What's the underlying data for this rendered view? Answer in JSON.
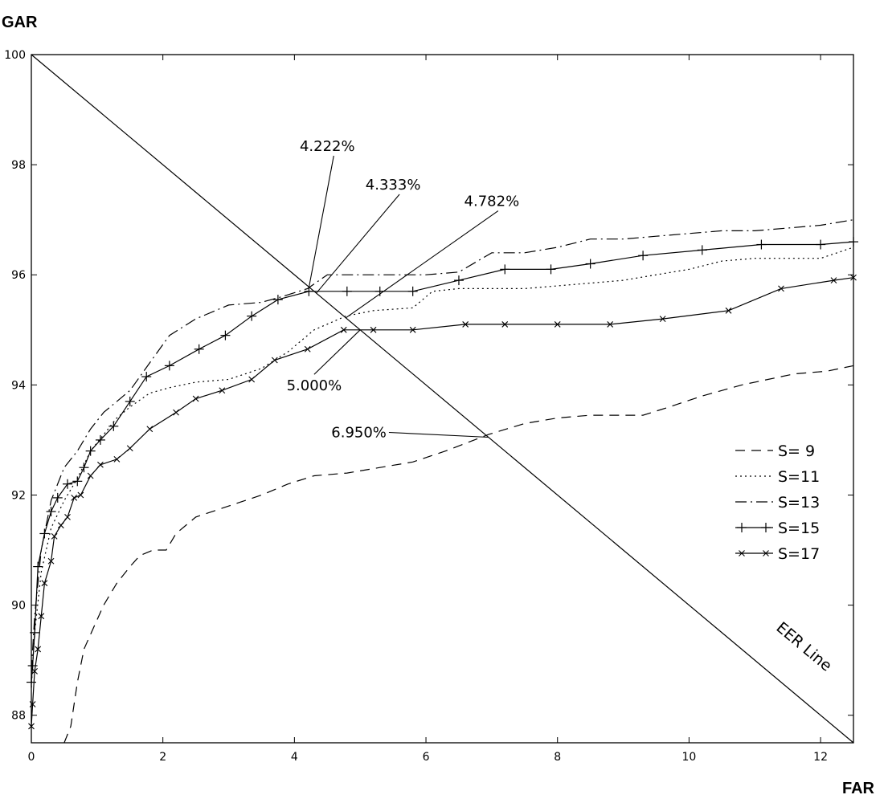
{
  "chart_data": {
    "type": "line",
    "xlabel": "FAR",
    "ylabel": "GAR",
    "xlim": [
      0,
      12.5
    ],
    "ylim": [
      87.5,
      100
    ],
    "x_ticks": [
      0,
      2,
      4,
      6,
      8,
      10,
      12
    ],
    "y_ticks": [
      88,
      90,
      92,
      94,
      96,
      98,
      100
    ],
    "grid": false,
    "legend_position": "right",
    "series": [
      {
        "name": "S= 9",
        "dash": "12,8",
        "marker": "none",
        "points": [
          [
            0.5,
            87.5
          ],
          [
            0.6,
            87.8
          ],
          [
            0.7,
            88.6
          ],
          [
            0.8,
            89.2
          ],
          [
            0.95,
            89.6
          ],
          [
            1.1,
            90.0
          ],
          [
            1.3,
            90.4
          ],
          [
            1.5,
            90.7
          ],
          [
            1.65,
            90.9
          ],
          [
            1.85,
            91.0
          ],
          [
            2.05,
            91.0
          ],
          [
            2.2,
            91.3
          ],
          [
            2.5,
            91.6
          ],
          [
            3.0,
            91.8
          ],
          [
            3.5,
            92.0
          ],
          [
            3.9,
            92.2
          ],
          [
            4.3,
            92.35
          ],
          [
            4.8,
            92.4
          ],
          [
            5.3,
            92.5
          ],
          [
            5.8,
            92.6
          ],
          [
            6.3,
            92.8
          ],
          [
            6.95,
            93.1
          ],
          [
            7.5,
            93.3
          ],
          [
            8.0,
            93.4
          ],
          [
            8.5,
            93.45
          ],
          [
            9.0,
            93.45
          ],
          [
            9.3,
            93.45
          ],
          [
            9.7,
            93.6
          ],
          [
            10.2,
            93.8
          ],
          [
            10.8,
            94.0
          ],
          [
            11.2,
            94.1
          ],
          [
            11.6,
            94.2
          ],
          [
            12.1,
            94.25
          ],
          [
            12.5,
            94.35
          ]
        ]
      },
      {
        "name": "S=11",
        "dash": "2,4",
        "marker": "none",
        "points": [
          [
            0.0,
            88.5
          ],
          [
            0.05,
            89.5
          ],
          [
            0.15,
            90.6
          ],
          [
            0.3,
            91.4
          ],
          [
            0.5,
            91.9
          ],
          [
            0.7,
            92.3
          ],
          [
            0.9,
            92.8
          ],
          [
            1.1,
            93.1
          ],
          [
            1.3,
            93.4
          ],
          [
            1.5,
            93.6
          ],
          [
            1.8,
            93.85
          ],
          [
            2.1,
            93.95
          ],
          [
            2.5,
            94.05
          ],
          [
            3.0,
            94.1
          ],
          [
            3.5,
            94.3
          ],
          [
            3.9,
            94.6
          ],
          [
            4.3,
            95.0
          ],
          [
            4.78,
            95.25
          ],
          [
            5.2,
            95.35
          ],
          [
            5.8,
            95.4
          ],
          [
            6.1,
            95.7
          ],
          [
            6.5,
            95.75
          ],
          [
            7.0,
            95.75
          ],
          [
            7.5,
            95.75
          ],
          [
            8.0,
            95.8
          ],
          [
            9.0,
            95.9
          ],
          [
            9.5,
            96.0
          ],
          [
            10.0,
            96.1
          ],
          [
            10.5,
            96.25
          ],
          [
            11.0,
            96.3
          ],
          [
            11.5,
            96.3
          ],
          [
            12.0,
            96.3
          ],
          [
            12.5,
            96.5
          ]
        ]
      },
      {
        "name": "S=13",
        "dash": "14,5,2,5",
        "marker": "none",
        "points": [
          [
            0.0,
            88.8
          ],
          [
            0.05,
            89.8
          ],
          [
            0.15,
            91.0
          ],
          [
            0.3,
            91.9
          ],
          [
            0.5,
            92.5
          ],
          [
            0.7,
            92.8
          ],
          [
            0.9,
            93.2
          ],
          [
            1.1,
            93.5
          ],
          [
            1.3,
            93.7
          ],
          [
            1.5,
            93.9
          ],
          [
            1.8,
            94.4
          ],
          [
            2.1,
            94.9
          ],
          [
            2.5,
            95.2
          ],
          [
            3.0,
            95.45
          ],
          [
            3.5,
            95.5
          ],
          [
            3.8,
            95.6
          ],
          [
            4.2,
            95.75
          ],
          [
            4.5,
            96.0
          ],
          [
            5.0,
            96.0
          ],
          [
            5.5,
            96.0
          ],
          [
            6.0,
            96.0
          ],
          [
            6.5,
            96.05
          ],
          [
            7.0,
            96.4
          ],
          [
            7.5,
            96.4
          ],
          [
            8.0,
            96.5
          ],
          [
            8.5,
            96.65
          ],
          [
            9.0,
            96.65
          ],
          [
            9.5,
            96.7
          ],
          [
            10.0,
            96.75
          ],
          [
            10.5,
            96.8
          ],
          [
            11.0,
            96.8
          ],
          [
            11.5,
            96.85
          ],
          [
            12.0,
            96.9
          ],
          [
            12.5,
            97.0
          ]
        ]
      },
      {
        "name": "S=15",
        "dash": "",
        "marker": "plus",
        "points": [
          [
            0.0,
            88.6
          ],
          [
            0.02,
            88.9
          ],
          [
            0.05,
            89.5
          ],
          [
            0.1,
            90.7
          ],
          [
            0.2,
            91.3
          ],
          [
            0.3,
            91.7
          ],
          [
            0.4,
            91.95
          ],
          [
            0.55,
            92.2
          ],
          [
            0.7,
            92.25
          ],
          [
            0.8,
            92.5
          ],
          [
            0.9,
            92.8
          ],
          [
            1.05,
            93.0
          ],
          [
            1.25,
            93.25
          ],
          [
            1.5,
            93.7
          ],
          [
            1.75,
            94.15
          ],
          [
            2.1,
            94.35
          ],
          [
            2.55,
            94.65
          ],
          [
            2.95,
            94.9
          ],
          [
            3.35,
            95.25
          ],
          [
            3.75,
            95.55
          ],
          [
            4.22,
            95.7
          ],
          [
            4.8,
            95.7
          ],
          [
            5.3,
            95.7
          ],
          [
            5.8,
            95.7
          ],
          [
            6.5,
            95.9
          ],
          [
            7.2,
            96.1
          ],
          [
            7.9,
            96.1
          ],
          [
            8.5,
            96.2
          ],
          [
            9.3,
            96.35
          ],
          [
            10.2,
            96.45
          ],
          [
            11.1,
            96.55
          ],
          [
            12.0,
            96.55
          ],
          [
            12.5,
            96.6
          ]
        ]
      },
      {
        "name": "S=17",
        "dash": "",
        "marker": "x",
        "points": [
          [
            0.0,
            87.8
          ],
          [
            0.02,
            88.2
          ],
          [
            0.05,
            88.8
          ],
          [
            0.1,
            89.2
          ],
          [
            0.15,
            89.8
          ],
          [
            0.2,
            90.4
          ],
          [
            0.3,
            90.8
          ],
          [
            0.35,
            91.25
          ],
          [
            0.45,
            91.45
          ],
          [
            0.55,
            91.6
          ],
          [
            0.65,
            91.95
          ],
          [
            0.75,
            92.0
          ],
          [
            0.9,
            92.35
          ],
          [
            1.05,
            92.55
          ],
          [
            1.3,
            92.65
          ],
          [
            1.5,
            92.85
          ],
          [
            1.8,
            93.2
          ],
          [
            2.2,
            93.5
          ],
          [
            2.5,
            93.75
          ],
          [
            2.9,
            93.9
          ],
          [
            3.35,
            94.1
          ],
          [
            3.7,
            94.45
          ],
          [
            4.2,
            94.65
          ],
          [
            4.75,
            95.0
          ],
          [
            5.2,
            95.0
          ],
          [
            5.8,
            95.0
          ],
          [
            6.6,
            95.1
          ],
          [
            7.2,
            95.1
          ],
          [
            8.0,
            95.1
          ],
          [
            8.8,
            95.1
          ],
          [
            9.6,
            95.2
          ],
          [
            10.6,
            95.35
          ],
          [
            11.4,
            95.75
          ],
          [
            12.2,
            95.9
          ],
          [
            12.5,
            95.95
          ]
        ]
      }
    ],
    "reference_line": {
      "label": "EER Line",
      "points": [
        [
          0,
          100
        ],
        [
          12.5,
          87.5
        ]
      ]
    },
    "annotations": [
      {
        "text": "4.222%",
        "text_at": [
          4.5,
          98.25
        ],
        "points_to": [
          4.222,
          95.778
        ],
        "anchor": "middle"
      },
      {
        "text": "4.333%",
        "text_at": [
          5.5,
          97.55
        ],
        "points_to": [
          4.333,
          95.667
        ],
        "anchor": "middle"
      },
      {
        "text": "4.782%",
        "text_at": [
          7.0,
          97.25
        ],
        "points_to": [
          4.782,
          95.218
        ],
        "anchor": "middle"
      },
      {
        "text": "5.000%",
        "text_at": [
          4.3,
          93.9
        ],
        "points_to": [
          5.0,
          95.0
        ],
        "anchor": "middle"
      },
      {
        "text": "6.950%",
        "text_at": [
          5.4,
          93.05
        ],
        "points_to": [
          6.95,
          93.05
        ],
        "anchor": "end"
      }
    ]
  }
}
